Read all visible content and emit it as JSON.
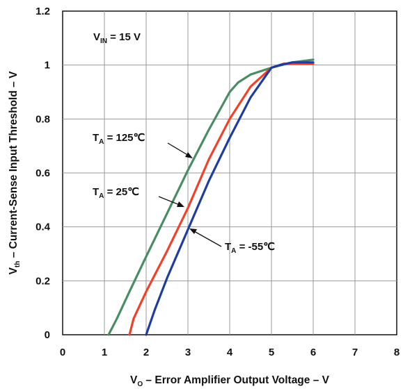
{
  "chart_data": {
    "type": "line",
    "xlabel": {
      "prefix": "V",
      "sub": "O",
      "rest": " – Error Amplifier Output Voltage – V"
    },
    "ylabel": {
      "prefix": "V",
      "sub": "th",
      "rest": " – Current-Sense Input Threshold – V"
    },
    "xlim": [
      0,
      8
    ],
    "ylim": [
      0,
      1.2
    ],
    "x_ticks": [
      "0",
      "1",
      "2",
      "3",
      "4",
      "5",
      "6",
      "7",
      "8"
    ],
    "y_ticks": [
      "0",
      "0.2",
      "0.4",
      "0.6",
      "0.8",
      "1",
      "1.2"
    ],
    "grid": true,
    "series": [
      {
        "color": "#4a8c63",
        "points": [
          [
            1.1,
            0
          ],
          [
            1.3,
            0.06
          ],
          [
            1.6,
            0.16
          ],
          [
            2.0,
            0.29
          ],
          [
            2.5,
            0.45
          ],
          [
            3.0,
            0.61
          ],
          [
            3.5,
            0.76
          ],
          [
            4.0,
            0.9
          ],
          [
            4.2,
            0.935
          ],
          [
            4.5,
            0.965
          ],
          [
            4.8,
            0.98
          ],
          [
            5.0,
            0.99
          ],
          [
            5.5,
            1.01
          ],
          [
            6.0,
            1.02
          ]
        ]
      },
      {
        "color": "#f0412a",
        "points": [
          [
            1.6,
            0
          ],
          [
            1.7,
            0.06
          ],
          [
            2.0,
            0.16
          ],
          [
            2.5,
            0.31
          ],
          [
            3.0,
            0.47
          ],
          [
            3.5,
            0.65
          ],
          [
            4.0,
            0.8
          ],
          [
            4.5,
            0.92
          ],
          [
            5.0,
            0.99
          ],
          [
            5.3,
            1.005
          ],
          [
            6.0,
            1.005
          ]
        ]
      },
      {
        "color": "#1f3ca0",
        "points": [
          [
            2.0,
            0
          ],
          [
            2.2,
            0.09
          ],
          [
            2.5,
            0.21
          ],
          [
            3.0,
            0.39
          ],
          [
            3.5,
            0.57
          ],
          [
            4.0,
            0.73
          ],
          [
            4.5,
            0.88
          ],
          [
            5.0,
            0.99
          ],
          [
            5.2,
            1.0
          ],
          [
            5.5,
            1.01
          ],
          [
            6.0,
            1.01
          ]
        ]
      }
    ],
    "annotations": [
      {
        "id": "vin",
        "prefix": "V",
        "sub": "IN",
        "rest": " = 15 V"
      },
      {
        "id": "t125",
        "prefix": "T",
        "sub": "A",
        "rest": " = 125℃"
      },
      {
        "id": "t25",
        "prefix": "T",
        "sub": "A",
        "rest": " = 25℃"
      },
      {
        "id": "tm55",
        "prefix": "T",
        "sub": "A",
        "rest": " = -55℃"
      }
    ]
  }
}
